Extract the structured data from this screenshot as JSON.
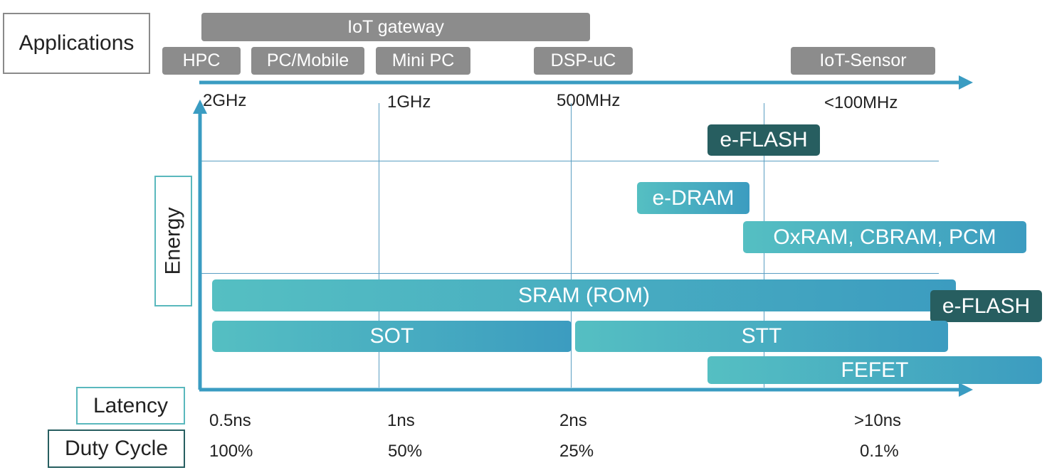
{
  "labels": {
    "applications": "Applications",
    "energy": "Energy",
    "latency": "Latency",
    "duty_cycle": "Duty Cycle"
  },
  "applications": {
    "iot_gateway": "IoT gateway",
    "hpc": "HPC",
    "pc_mobile": "PC/Mobile",
    "mini_pc": "Mini PC",
    "dsp_uc": "DSP-uC",
    "iot_sensor": "IoT-Sensor"
  },
  "frequency_ticks": [
    "2GHz",
    "1GHz",
    "500MHz",
    "<100MHz"
  ],
  "latency_ticks": [
    "0.5ns",
    "1ns",
    "2ns",
    ">10ns"
  ],
  "duty_cycle_ticks": [
    "100%",
    "50%",
    "25%",
    "0.1%"
  ],
  "memories": {
    "eflash_top": "e-FLASH",
    "edram": "e-DRAM",
    "oxram": "OxRAM, CBRAM, PCM",
    "sram": "SRAM (ROM)",
    "eflash_right": "e-FLASH",
    "sot": "SOT",
    "stt": "STT",
    "fefet": "FEFET"
  },
  "colors": {
    "axis": "#3a9cc2",
    "gray_box": "#8c8c8c",
    "gradient_start": "#55bfc2",
    "gradient_end": "#3c9cc0",
    "dark_teal": "#275e60",
    "outline_gray": "#8a8a8a",
    "outline_teal": "#5ab8bd",
    "outline_dark": "#275e60"
  }
}
